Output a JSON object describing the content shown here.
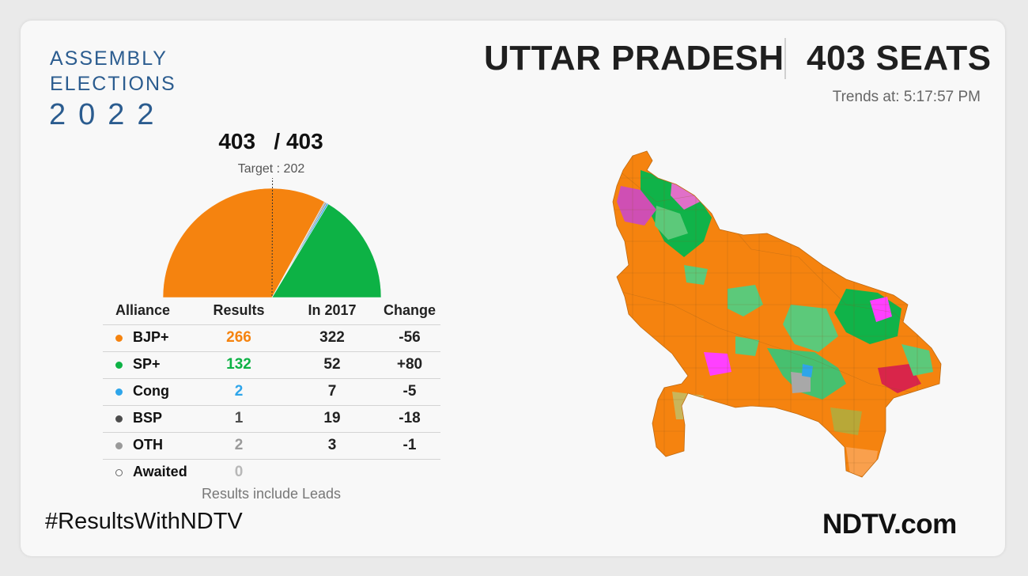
{
  "brand": {
    "line1": "ASSEMBLY",
    "line2": "ELECTIONS",
    "year": "2022"
  },
  "header": {
    "state": "UTTAR PRADESH",
    "seats": "403 SEATS",
    "trends_label": "Trends at:",
    "trends_time": "5:17:57 PM"
  },
  "tally": {
    "declared": "403",
    "total": "403",
    "target": "Target : 202"
  },
  "table": {
    "headers": [
      "Alliance",
      "Results",
      "In 2017",
      "Change"
    ],
    "note": "Results include Leads"
  },
  "footer": {
    "hashtag": "#ResultsWithNDTV",
    "logo": "NDTV.com"
  },
  "colors": {
    "bjp": "#f5830f",
    "sp": "#0db245",
    "cong": "#2ea5ea",
    "bsp": "#4d4d4d",
    "oth": "#9a9a9a",
    "text": "#222222",
    "brand_blue": "#2b5c8f"
  },
  "chart_data": {
    "type": "table",
    "rows": [
      {
        "alliance": "BJP+",
        "results": 266,
        "in_2017": "322",
        "change": "-56",
        "color": "#f5830f",
        "result_color": "#f5830f"
      },
      {
        "alliance": "SP+",
        "results": 132,
        "in_2017": "52",
        "change": "+80",
        "color": "#0db245",
        "result_color": "#0db245"
      },
      {
        "alliance": "Cong",
        "results": 2,
        "in_2017": "7",
        "change": "-5",
        "color": "#2ea5ea",
        "result_color": "#2ea5ea"
      },
      {
        "alliance": "BSP",
        "results": 1,
        "in_2017": "19",
        "change": "-18",
        "color": "#4d4d4d",
        "result_color": "#4d4d4d"
      },
      {
        "alliance": "OTH",
        "results": 2,
        "in_2017": "3",
        "change": "-1",
        "color": "#9a9a9a",
        "result_color": "#9a9a9a"
      },
      {
        "alliance": "Awaited",
        "results": 0,
        "in_2017": "",
        "change": "",
        "color": "hollow",
        "result_color": "#b8b8b8"
      }
    ],
    "semicircle": {
      "total": 403,
      "target": 202,
      "segments": [
        {
          "name": "BJP+",
          "value": 266,
          "color": "#f5830f"
        },
        {
          "name": "BSP",
          "value": 1,
          "color": "#4d4d4d"
        },
        {
          "name": "OTH",
          "value": 2,
          "color": "#9a9a9a"
        },
        {
          "name": "Cong",
          "value": 2,
          "color": "#2ea5ea"
        },
        {
          "name": "SP+",
          "value": 132,
          "color": "#0db245"
        }
      ]
    }
  }
}
